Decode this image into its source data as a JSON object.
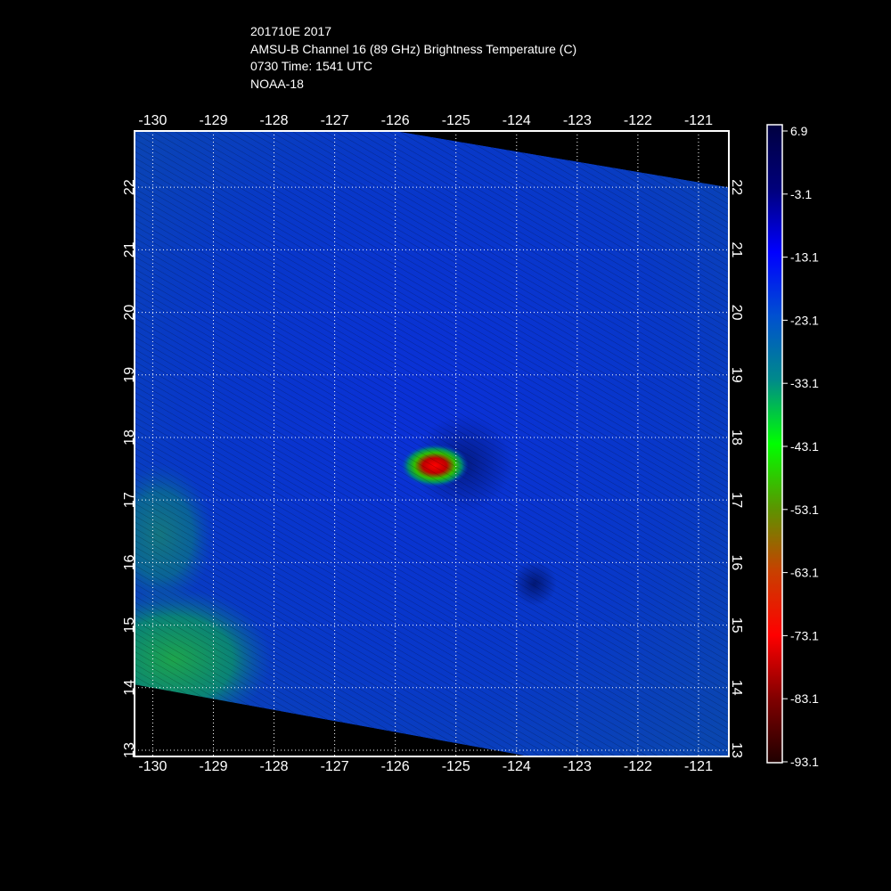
{
  "header": {
    "storm_line": "201710E 2017",
    "product_line": "AMSU-B Channel 16 (89 GHz) Brightness Temperature (C)",
    "time_line": "0730 Time: 1541 UTC",
    "satellite_line": "NOAA-18"
  },
  "map": {
    "lon_ticks": [
      "-130",
      "-129",
      "-128",
      "-127",
      "-126",
      "-125",
      "-124",
      "-123",
      "-122",
      "-121"
    ],
    "lat_ticks": [
      "13",
      "14",
      "15",
      "16",
      "17",
      "18",
      "19",
      "20",
      "21",
      "22"
    ],
    "lon_range": [
      -130.3,
      -120.5
    ],
    "lat_range": [
      12.9,
      22.9
    ],
    "swath_corners_lonlat": {
      "top_left": [
        -130.3,
        22.9
      ],
      "top_right_start": [
        -126.0,
        22.9
      ],
      "right_top": [
        -120.5,
        22.0
      ],
      "right_bottom": [
        -120.5,
        12.9
      ],
      "bottom_end": [
        -123.8,
        12.9
      ],
      "left_bottom": [
        -130.3,
        14.05
      ]
    },
    "eye_center_lonlat": [
      -125.35,
      17.55
    ],
    "grid": "dotted"
  },
  "colorbar": {
    "labels": [
      "6.9",
      "-3.1",
      "-13.1",
      "-23.1",
      "-33.1",
      "-43.1",
      "-53.1",
      "-63.1",
      "-73.1",
      "-83.1",
      "-93.1"
    ],
    "min": -93.1,
    "max": 6.9,
    "stops": [
      {
        "value": 6.9,
        "color": "#000040"
      },
      {
        "value": -3.1,
        "color": "#00007a"
      },
      {
        "value": -13.1,
        "color": "#0000ff"
      },
      {
        "value": -23.1,
        "color": "#0050d0"
      },
      {
        "value": -33.1,
        "color": "#008a8a"
      },
      {
        "value": -43.1,
        "color": "#00ff00"
      },
      {
        "value": -53.1,
        "color": "#5a9600"
      },
      {
        "value": -63.1,
        "color": "#c84000"
      },
      {
        "value": -73.1,
        "color": "#ff0000"
      },
      {
        "value": -83.1,
        "color": "#800000"
      },
      {
        "value": -93.1,
        "color": "#200000"
      }
    ]
  }
}
